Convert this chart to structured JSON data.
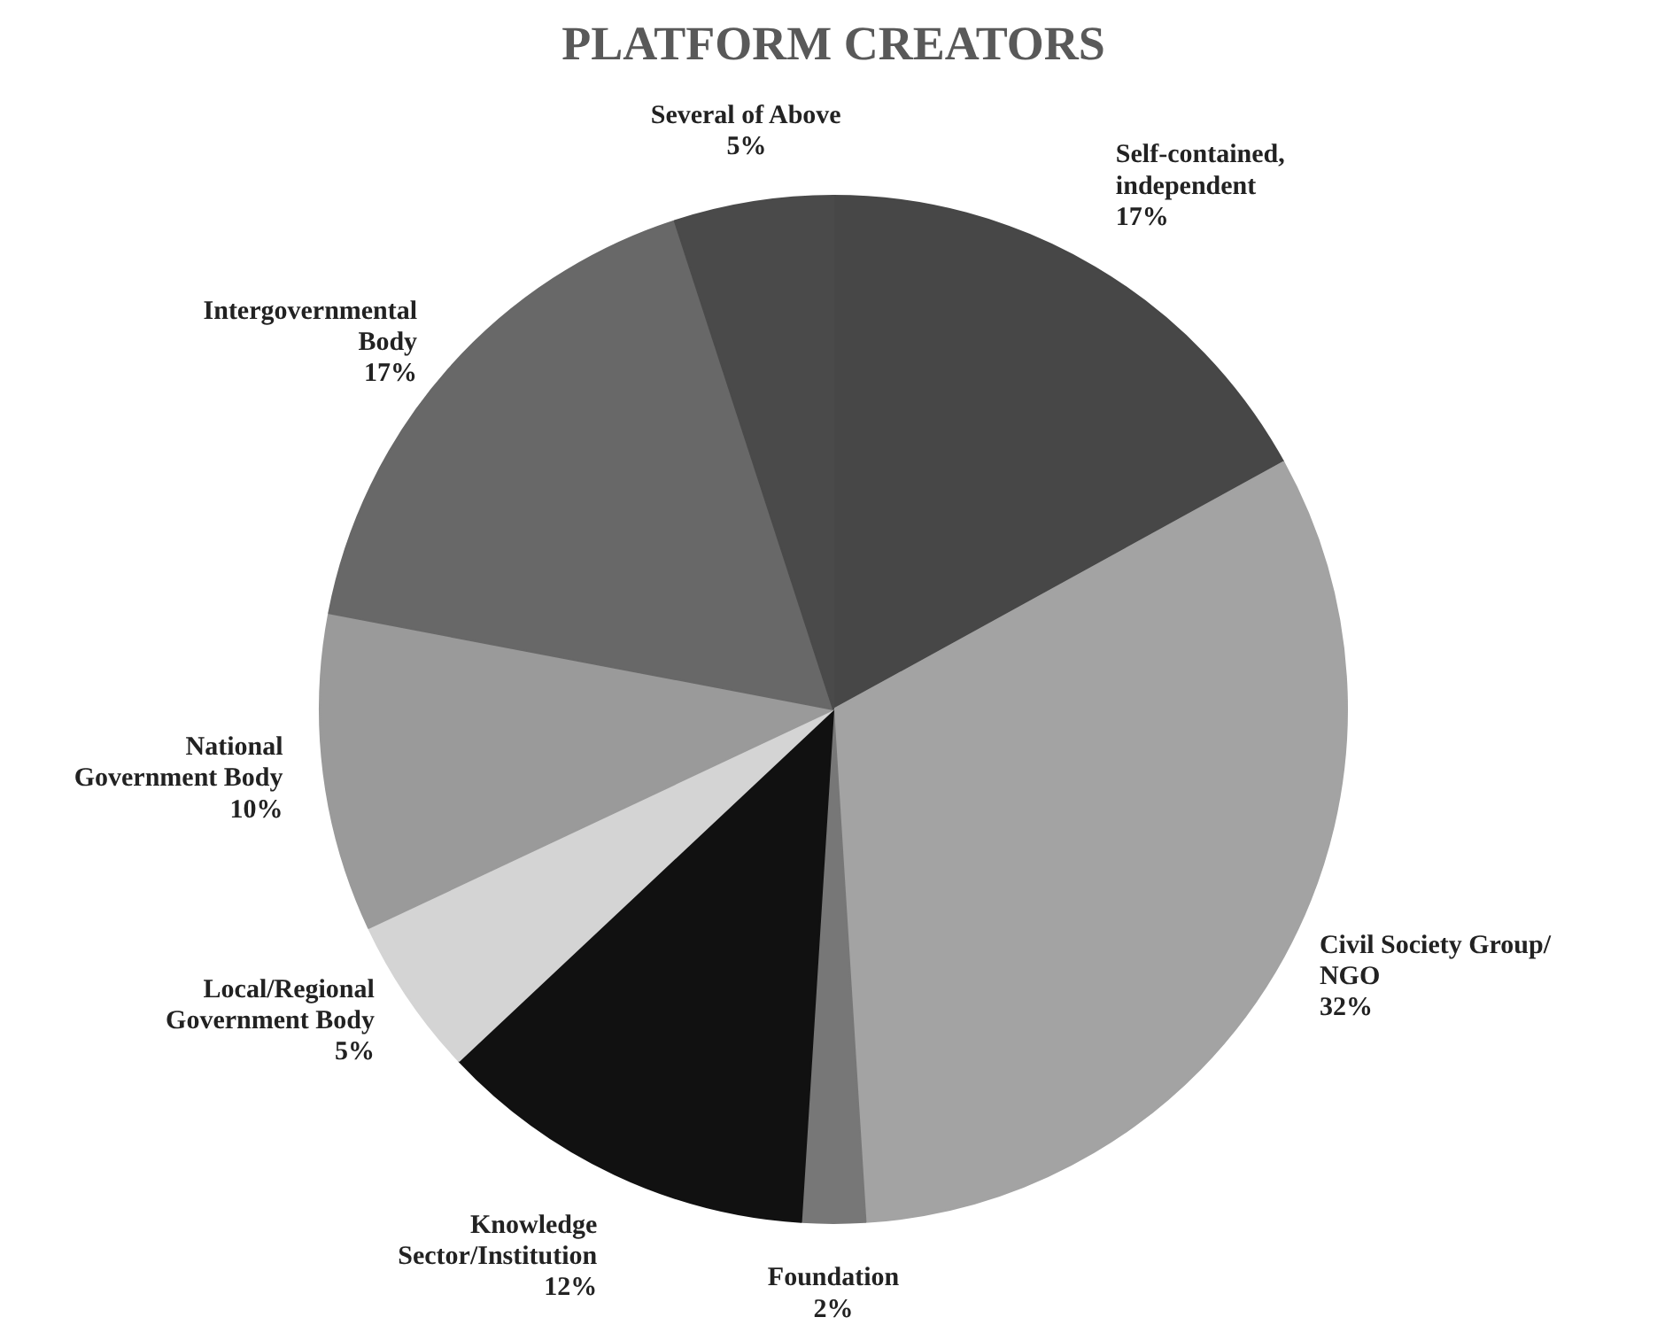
{
  "chart_data": {
    "type": "pie",
    "title": "PLATFORM CREATORS",
    "categories": [
      "Self-contained,\nindependent",
      "Civil Society Group/\nNGO",
      "Foundation",
      "Knowledge\nSector/Institution",
      "Local/Regional\nGovernment Body",
      "National\nGovernment Body",
      "Intergovernmental\nBody",
      "Several of Above"
    ],
    "values": [
      17,
      32,
      2,
      12,
      5,
      10,
      17,
      5
    ],
    "value_labels": [
      "17%",
      "32%",
      "2%",
      "12%",
      "5%",
      "10%",
      "17%",
      "5%"
    ],
    "colors": [
      "#474747",
      "#a3a3a3",
      "#777777",
      "#111111",
      "#d4d4d4",
      "#9a9a9a",
      "#686868",
      "#4a4a4a"
    ]
  }
}
